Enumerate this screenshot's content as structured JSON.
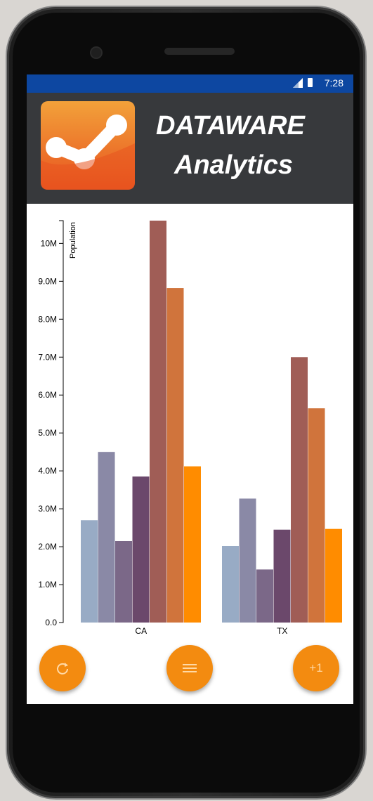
{
  "status_bar": {
    "time": "7:28"
  },
  "header": {
    "brand_line1": "DATAWARE",
    "brand_line2": "Analytics"
  },
  "buttons": {
    "refresh_icon": "refresh-icon",
    "menu_icon": "menu-icon",
    "plus_label": "+1"
  },
  "colors": {
    "status_bar": "#0d47a1",
    "header": "#37393c",
    "accent": "#f38b10",
    "series": [
      "#98abc5",
      "#8a89a6",
      "#7b6888",
      "#6b486b",
      "#a05d56",
      "#d0743c",
      "#ff8c00"
    ]
  },
  "chart_data": {
    "type": "bar",
    "categories": [
      "CA",
      "TX"
    ],
    "ylabel": "Population",
    "ylim": [
      0,
      10600000
    ],
    "yticks": [
      0,
      1000000,
      2000000,
      3000000,
      4000000,
      5000000,
      6000000,
      7000000,
      8000000,
      9000000,
      10000000
    ],
    "ytick_labels": [
      "0.0",
      "1.0M",
      "2.0M",
      "3.0M",
      "4.0M",
      "5.0M",
      "6.0M",
      "7.0M",
      "8.0M",
      "9.0M",
      "10M"
    ],
    "series": [
      {
        "values": [
          2700000,
          2020000
        ]
      },
      {
        "values": [
          4500000,
          3270000
        ]
      },
      {
        "values": [
          2150000,
          1400000
        ]
      },
      {
        "values": [
          3850000,
          2450000
        ]
      },
      {
        "values": [
          10600000,
          7000000
        ]
      },
      {
        "values": [
          8820000,
          5650000
        ]
      },
      {
        "values": [
          4120000,
          2470000
        ]
      }
    ],
    "grid": false,
    "legend": "none"
  }
}
